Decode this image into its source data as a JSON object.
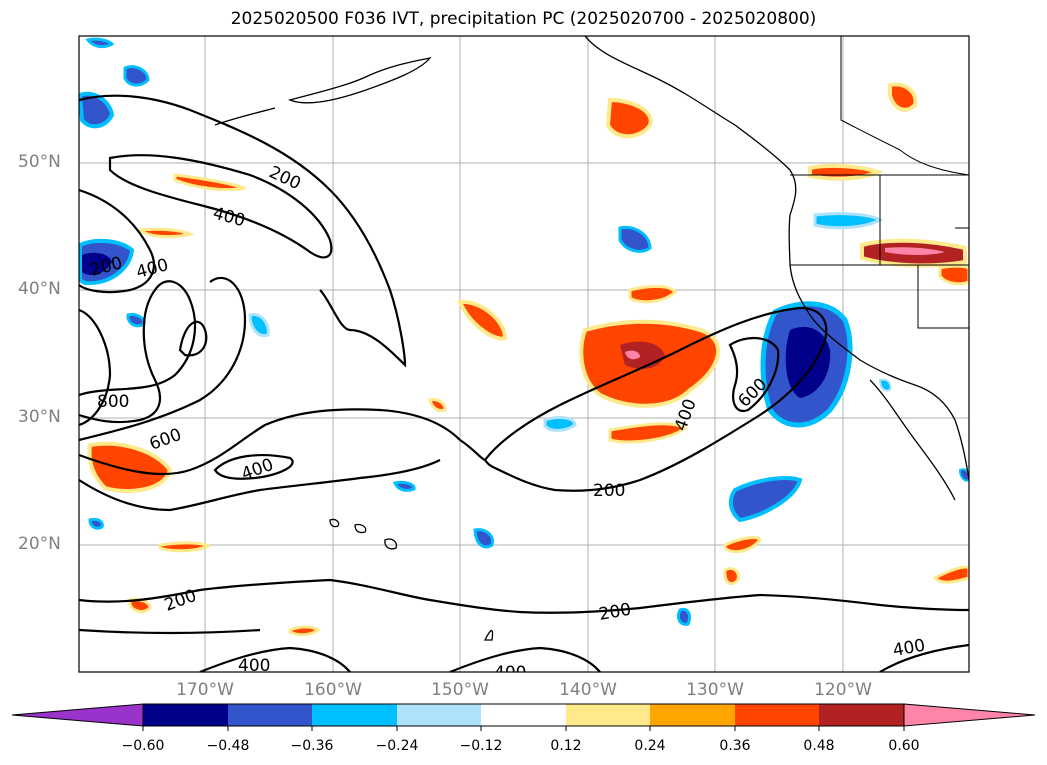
{
  "title": "2025020500 F036 IVT, precipitation PC (2025020700 - 2025020800)",
  "lat_labels": [
    "50°N",
    "40°N",
    "30°N",
    "20°N"
  ],
  "lon_labels": [
    "170°W",
    "160°W",
    "150°W",
    "140°W",
    "130°W",
    "120°W"
  ],
  "contour_labels": [
    "200",
    "400",
    "200",
    "400",
    "800",
    "600",
    "400",
    "200",
    "400",
    "600",
    "200",
    "200",
    "400",
    "400",
    "400"
  ],
  "colorbar": {
    "ticks": [
      "−0.60",
      "−0.48",
      "−0.36",
      "−0.24",
      "−0.12",
      "0.12",
      "0.24",
      "0.36",
      "0.48",
      "0.60"
    ],
    "colors": [
      "#9933cc",
      "#00008b",
      "#3355cc",
      "#00bfff",
      "#aee2fa",
      "#ffffff",
      "#ffe98a",
      "#ffa500",
      "#ff4500",
      "#b22222",
      "#ff85a8"
    ]
  }
}
